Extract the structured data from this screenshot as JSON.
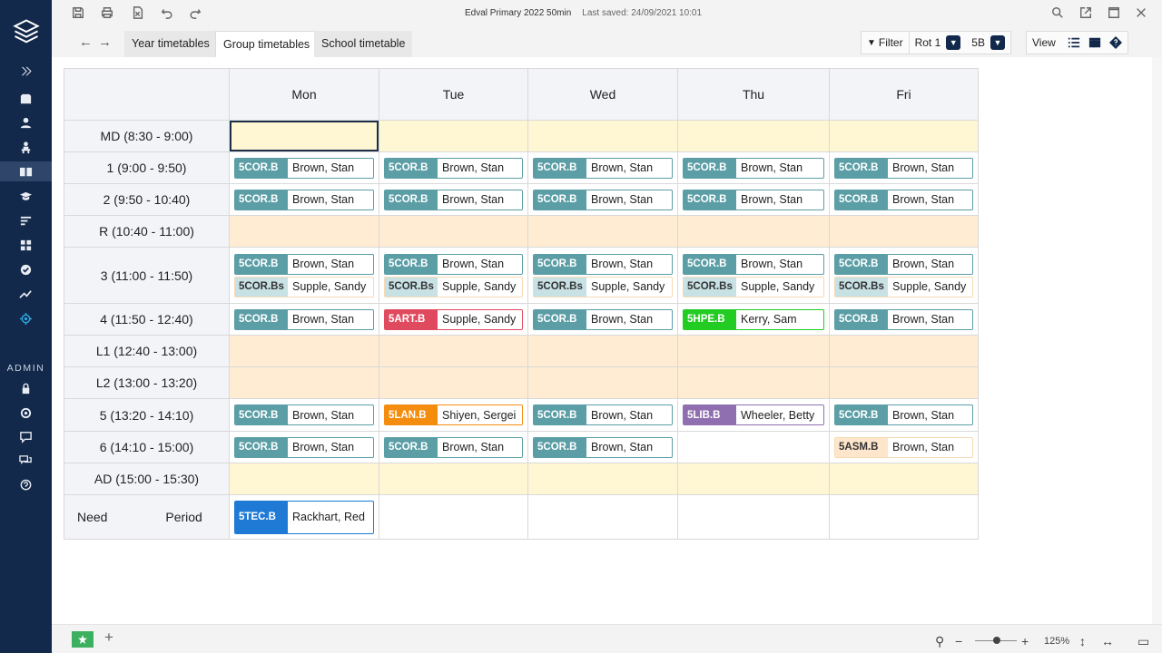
{
  "app": {
    "title": "Edval Primary 2022 50min",
    "last_saved": "Last saved: 24/09/2021 10:01"
  },
  "sidebar": {
    "admin_label": "ADMIN",
    "icons": [
      "logo-icon",
      "expand-icon",
      "inbox-icon",
      "person-icon",
      "teacher-icon",
      "book-icon",
      "graduation-cap-icon",
      "lines-icon",
      "grid-icon",
      "check-icon",
      "trend-icon",
      "settings-flower-icon",
      "lock-icon",
      "gear-icon",
      "chat-icon",
      "chat-double-icon",
      "help-icon"
    ],
    "active": "book-icon"
  },
  "tabs": [
    {
      "label": "Year timetables",
      "active": false
    },
    {
      "label": "Group timetables",
      "active": true
    },
    {
      "label": "School timetable",
      "active": false
    }
  ],
  "toolbar": {
    "filter_label": "Filter",
    "rotation": "Rot 1",
    "group": "5B",
    "view_label": "View"
  },
  "timetable": {
    "days": [
      "Mon",
      "Tue",
      "Wed",
      "Thu",
      "Fri"
    ],
    "need_label": "Need Period",
    "periods": [
      {
        "label": "MD  (8:30 - 9:00)",
        "band": "yellow",
        "cells": [
          [],
          [],
          [],
          [],
          []
        ]
      },
      {
        "label": "1  (9:00 - 9:50)",
        "band": "white",
        "cells": [
          [
            {
              "code": "5COR.B",
              "teacher": "Brown, Stan",
              "color": "#5b9ea6"
            }
          ],
          [
            {
              "code": "5COR.B",
              "teacher": "Brown, Stan",
              "color": "#5b9ea6"
            }
          ],
          [
            {
              "code": "5COR.B",
              "teacher": "Brown, Stan",
              "color": "#5b9ea6"
            }
          ],
          [
            {
              "code": "5COR.B",
              "teacher": "Brown, Stan",
              "color": "#5b9ea6"
            }
          ],
          [
            {
              "code": "5COR.B",
              "teacher": "Brown, Stan",
              "color": "#5b9ea6"
            }
          ]
        ]
      },
      {
        "label": "2  (9:50 - 10:40)",
        "band": "white",
        "cells": [
          [
            {
              "code": "5COR.B",
              "teacher": "Brown, Stan",
              "color": "#5b9ea6"
            }
          ],
          [
            {
              "code": "5COR.B",
              "teacher": "Brown, Stan",
              "color": "#5b9ea6"
            }
          ],
          [
            {
              "code": "5COR.B",
              "teacher": "Brown, Stan",
              "color": "#5b9ea6"
            }
          ],
          [
            {
              "code": "5COR.B",
              "teacher": "Brown, Stan",
              "color": "#5b9ea6"
            }
          ],
          [
            {
              "code": "5COR.B",
              "teacher": "Brown, Stan",
              "color": "#5b9ea6"
            }
          ]
        ]
      },
      {
        "label": "R  (10:40 - 11:00)",
        "band": "orange",
        "cells": [
          [],
          [],
          [],
          [],
          []
        ]
      },
      {
        "label": "3  (11:00 - 11:50)",
        "band": "white",
        "cells": [
          [
            {
              "code": "5COR.B",
              "teacher": "Brown, Stan",
              "color": "#5b9ea6"
            },
            {
              "code": "5COR.Bs",
              "teacher": "Supple, Sandy",
              "color": "#c8e1e5"
            }
          ],
          [
            {
              "code": "5COR.B",
              "teacher": "Brown, Stan",
              "color": "#5b9ea6"
            },
            {
              "code": "5COR.Bs",
              "teacher": "Supple, Sandy",
              "color": "#c8e1e5"
            }
          ],
          [
            {
              "code": "5COR.B",
              "teacher": "Brown, Stan",
              "color": "#5b9ea6"
            },
            {
              "code": "5COR.Bs",
              "teacher": "Supple, Sandy",
              "color": "#c8e1e5"
            }
          ],
          [
            {
              "code": "5COR.B",
              "teacher": "Brown, Stan",
              "color": "#5b9ea6"
            },
            {
              "code": "5COR.Bs",
              "teacher": "Supple, Sandy",
              "color": "#c8e1e5"
            }
          ],
          [
            {
              "code": "5COR.B",
              "teacher": "Brown, Stan",
              "color": "#5b9ea6"
            },
            {
              "code": "5COR.Bs",
              "teacher": "Supple, Sandy",
              "color": "#c8e1e5"
            }
          ]
        ]
      },
      {
        "label": "4  (11:50 - 12:40)",
        "band": "white",
        "cells": [
          [
            {
              "code": "5COR.B",
              "teacher": "Brown, Stan",
              "color": "#5b9ea6"
            }
          ],
          [
            {
              "code": "5ART.B",
              "teacher": "Supple, Sandy",
              "color": "#e04a5e"
            }
          ],
          [
            {
              "code": "5COR.B",
              "teacher": "Brown, Stan",
              "color": "#5b9ea6"
            }
          ],
          [
            {
              "code": "5HPE.B",
              "teacher": "Kerry, Sam",
              "color": "#22cc22"
            }
          ],
          [
            {
              "code": "5COR.B",
              "teacher": "Brown, Stan",
              "color": "#5b9ea6"
            }
          ]
        ]
      },
      {
        "label": "L1  (12:40 - 13:00)",
        "band": "orange",
        "cells": [
          [],
          [],
          [],
          [],
          []
        ]
      },
      {
        "label": "L2  (13:00 - 13:20)",
        "band": "orange",
        "cells": [
          [],
          [],
          [],
          [],
          []
        ]
      },
      {
        "label": "5  (13:20 - 14:10)",
        "band": "white",
        "cells": [
          [
            {
              "code": "5COR.B",
              "teacher": "Brown, Stan",
              "color": "#5b9ea6"
            }
          ],
          [
            {
              "code": "5LAN.B",
              "teacher": "Shiyen, Sergei",
              "color": "#f48c0e"
            }
          ],
          [
            {
              "code": "5COR.B",
              "teacher": "Brown, Stan",
              "color": "#5b9ea6"
            }
          ],
          [
            {
              "code": "5LIB.B",
              "teacher": "Wheeler, Betty",
              "color": "#8f6fb0"
            }
          ],
          [
            {
              "code": "5COR.B",
              "teacher": "Brown, Stan",
              "color": "#5b9ea6"
            }
          ]
        ]
      },
      {
        "label": "6  (14:10 - 15:00)",
        "band": "white",
        "cells": [
          [
            {
              "code": "5COR.B",
              "teacher": "Brown, Stan",
              "color": "#5b9ea6"
            }
          ],
          [
            {
              "code": "5COR.B",
              "teacher": "Brown, Stan",
              "color": "#5b9ea6"
            }
          ],
          [
            {
              "code": "5COR.B",
              "teacher": "Brown, Stan",
              "color": "#5b9ea6"
            }
          ],
          [],
          [
            {
              "code": "5ASM.B",
              "teacher": "Brown, Stan",
              "color": "#fde6cc"
            }
          ]
        ]
      },
      {
        "label": "AD  (15:00 - 15:30)",
        "band": "yellow",
        "cells": [
          [],
          [],
          [],
          [],
          []
        ]
      }
    ],
    "need": [
      [
        {
          "code": "5TEC.B",
          "teacher": "Rackhart, Red",
          "color": "#1f7ad6"
        }
      ],
      [],
      [],
      [],
      []
    ]
  },
  "statusbar": {
    "zoom": "125%"
  }
}
